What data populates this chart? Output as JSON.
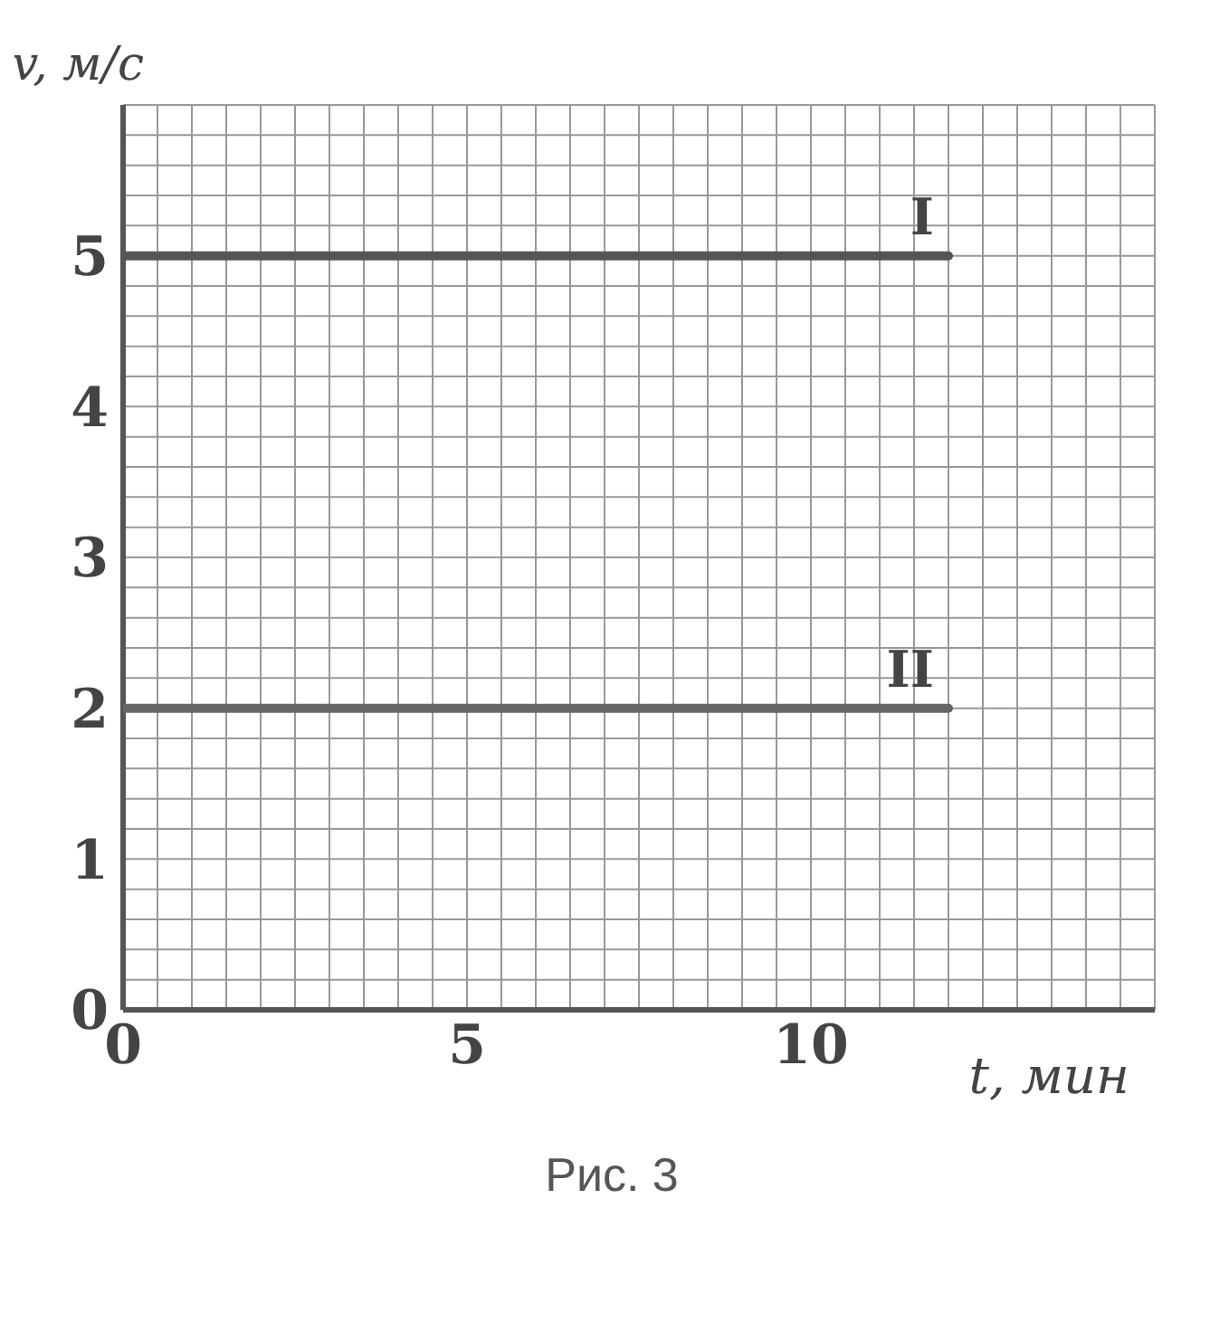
{
  "chart_data": {
    "type": "line",
    "xlabel": "t, мин",
    "ylabel": "v, м/с",
    "annotations": [
      "Рис. 3"
    ],
    "xlim": [
      0,
      15
    ],
    "ylim": [
      0,
      6
    ],
    "xticks": [
      0,
      {
        "value": 0.5,
        "label": null
      },
      {
        "value": 1,
        "label": null
      },
      {
        "value": 1.5,
        "label": null
      },
      {
        "value": 2,
        "label": null
      },
      {
        "value": 2.5,
        "label": null
      },
      {
        "value": 3,
        "label": null
      },
      {
        "value": 3.5,
        "label": null
      },
      {
        "value": 4,
        "label": null
      },
      {
        "value": 4.5,
        "label": null
      },
      5,
      {
        "value": 5.5,
        "label": null
      },
      {
        "value": 6,
        "label": null
      },
      {
        "value": 6.5,
        "label": null
      },
      {
        "value": 7,
        "label": null
      },
      {
        "value": 7.5,
        "label": null
      },
      {
        "value": 8,
        "label": null
      },
      {
        "value": 8.5,
        "label": null
      },
      {
        "value": 9,
        "label": null
      },
      {
        "value": 9.5,
        "label": null
      },
      10,
      {
        "value": 10.5,
        "label": null
      },
      {
        "value": 11,
        "label": null
      },
      {
        "value": 11.5,
        "label": null
      },
      {
        "value": 12,
        "label": null
      },
      {
        "value": 12.5,
        "label": null
      },
      {
        "value": 13,
        "label": null
      },
      {
        "value": 13.5,
        "label": null
      },
      {
        "value": 14,
        "label": null
      },
      {
        "value": 14.5,
        "label": null
      },
      {
        "value": 15,
        "label": null
      }
    ],
    "yticks": [
      0,
      {
        "value": 0.2,
        "label": null
      },
      {
        "value": 0.4,
        "label": null
      },
      {
        "value": 0.6,
        "label": null
      },
      {
        "value": 0.8,
        "label": null
      },
      1,
      {
        "value": 1.2,
        "label": null
      },
      {
        "value": 1.4,
        "label": null
      },
      {
        "value": 1.6,
        "label": null
      },
      {
        "value": 1.8,
        "label": null
      },
      2,
      {
        "value": 2.2,
        "label": null
      },
      {
        "value": 2.4,
        "label": null
      },
      {
        "value": 2.6,
        "label": null
      },
      {
        "value": 2.8,
        "label": null
      },
      3,
      {
        "value": 3.2,
        "label": null
      },
      {
        "value": 3.4,
        "label": null
      },
      {
        "value": 3.6,
        "label": null
      },
      {
        "value": 3.8,
        "label": null
      },
      4,
      {
        "value": 4.2,
        "label": null
      },
      {
        "value": 4.4,
        "label": null
      },
      {
        "value": 4.6,
        "label": null
      },
      {
        "value": 4.8,
        "label": null
      },
      5,
      {
        "value": 5.2,
        "label": null
      },
      {
        "value": 5.4,
        "label": null
      },
      {
        "value": 5.6,
        "label": null
      },
      {
        "value": 5.8,
        "label": null
      },
      {
        "value": 6,
        "label": null
      }
    ],
    "grid": true,
    "marker": "none",
    "line_style": "solid",
    "series": [
      {
        "name": "I",
        "color": "#555555",
        "values": [
          5,
          5
        ]
      },
      {
        "name": "II",
        "color": "#666666",
        "values": [
          2,
          2
        ]
      }
    ],
    "x": [
      0,
      12
    ]
  }
}
